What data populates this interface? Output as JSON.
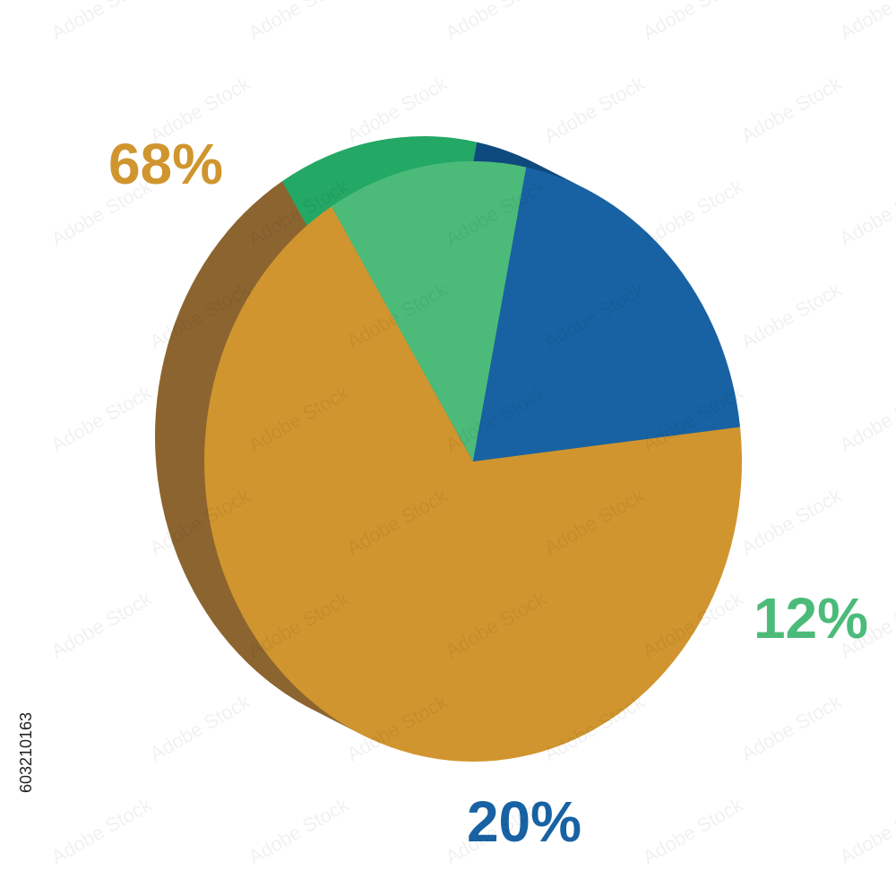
{
  "chart_data": {
    "type": "pie",
    "values": [
      68,
      12,
      20
    ],
    "value_labels": [
      "68%",
      "12%",
      "20%"
    ],
    "colors": [
      "#d0952e",
      "#4cbb7a",
      "#1862a3"
    ],
    "side_colors": [
      "#8c6430",
      "#24a865",
      "#0f4a7e"
    ]
  },
  "watermark": "Adobe Stock",
  "stock_id": "603210163"
}
